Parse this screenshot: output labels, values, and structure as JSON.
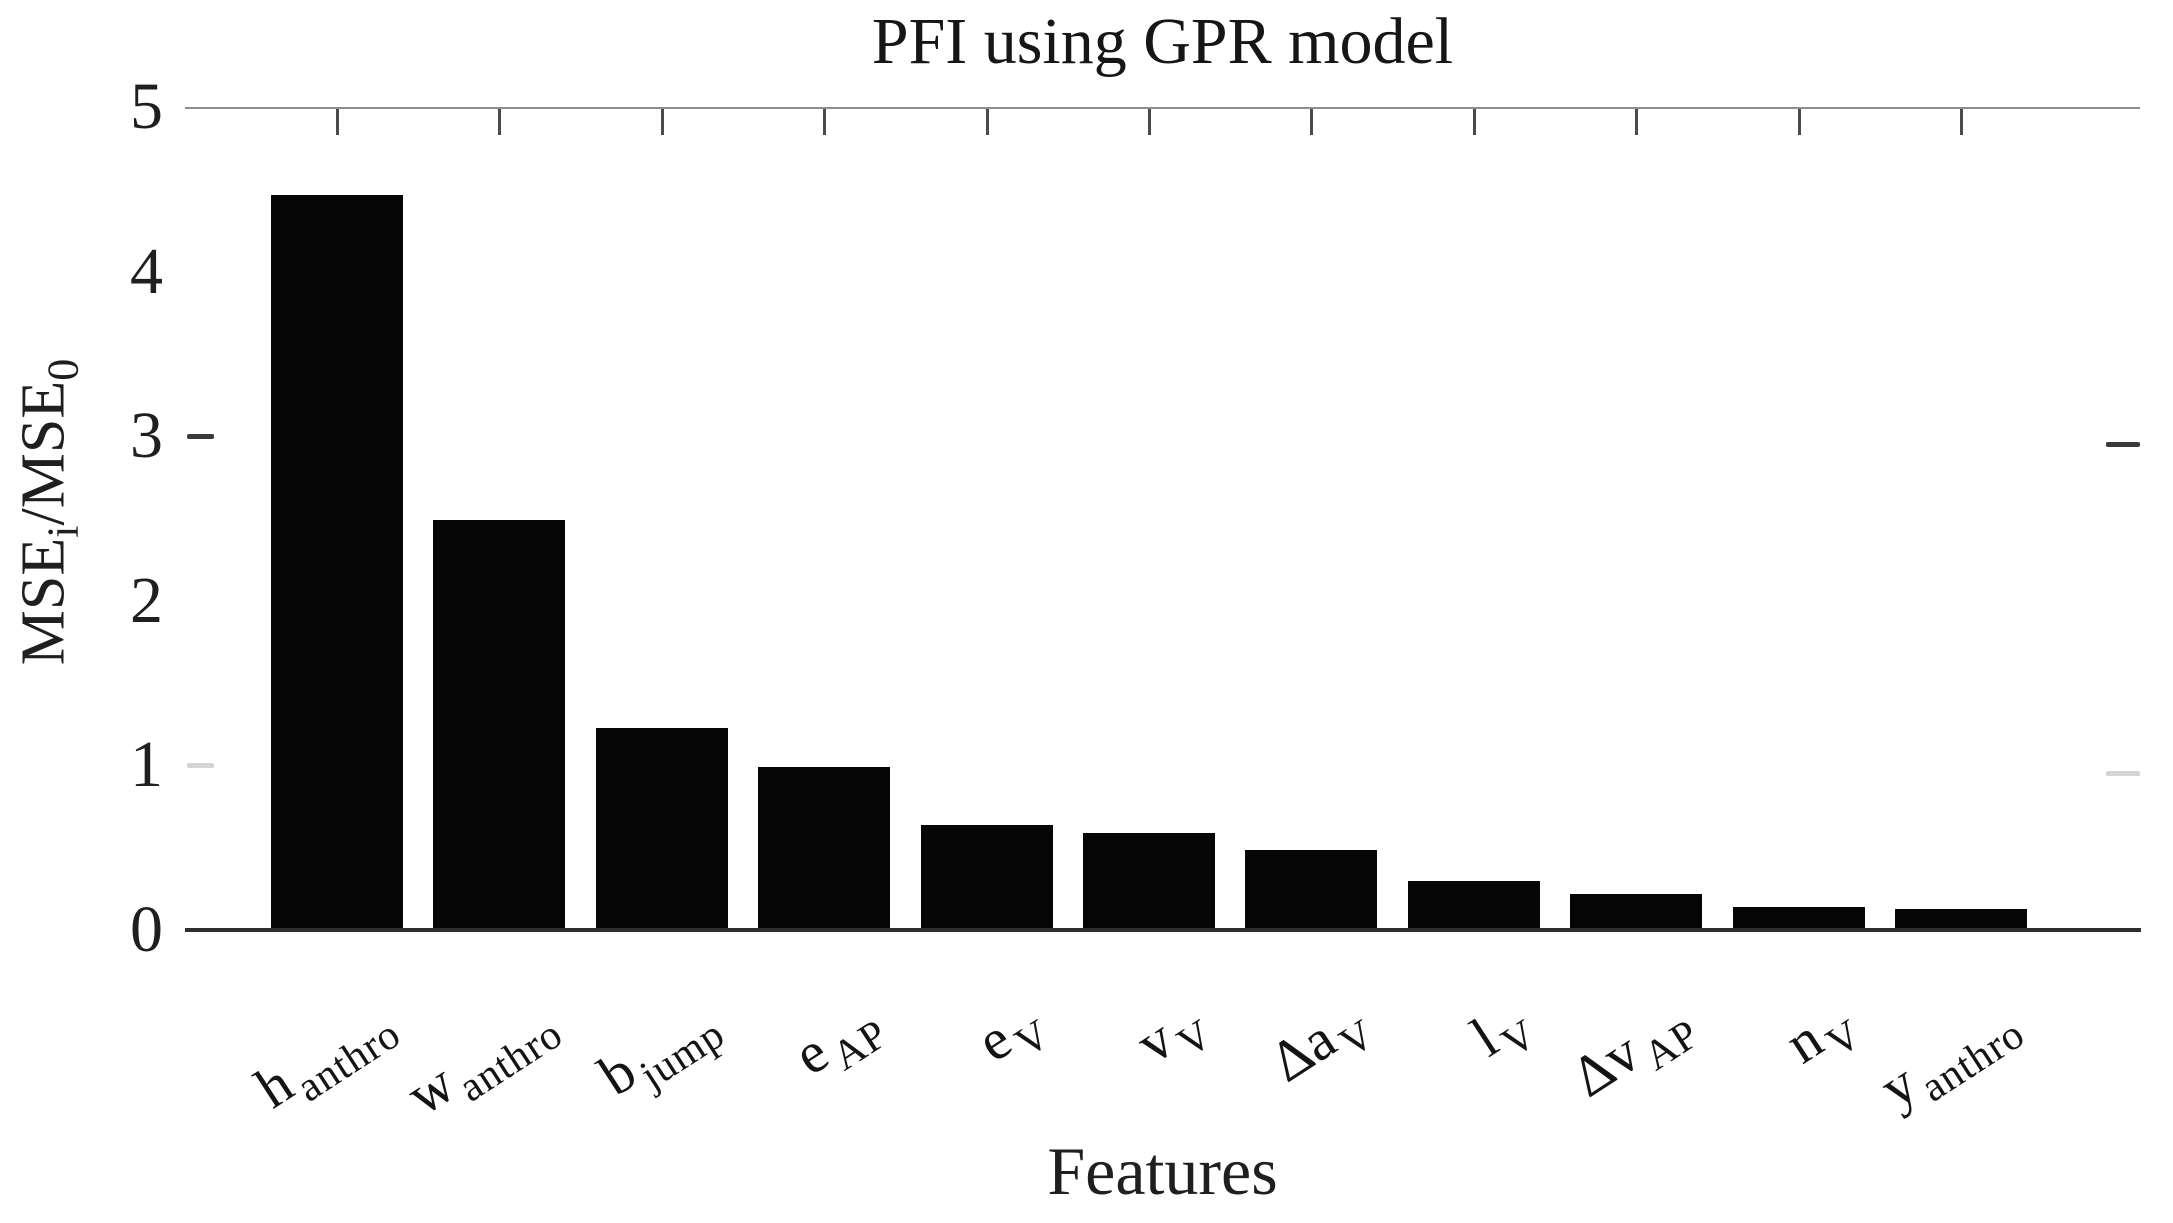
{
  "figure": {
    "title": "PFI using GPR model",
    "xlabel": "Features",
    "ylabel_parts": {
      "pre": "MSE",
      "sub1": "i",
      "mid": "/MSE",
      "sub2": "0"
    }
  },
  "chart_data": {
    "type": "bar",
    "title": "PFI using GPR model",
    "xlabel": "Features",
    "ylabel": "MSE_i/MSE_0",
    "categories": [
      "h_anthro",
      "w_anthro",
      "b_jump",
      "e_AP",
      "e_V",
      "v_V",
      "Δa_V",
      "l_V",
      "Δv_AP",
      "n_V",
      "y_anthro"
    ],
    "categories_rich": [
      {
        "base": "h",
        "sub": "anthro"
      },
      {
        "base": "w",
        "sub": "anthro"
      },
      {
        "base": "b",
        "sub": "jump"
      },
      {
        "base": "e",
        "sub": "AP"
      },
      {
        "base": "e",
        "sub": "V"
      },
      {
        "base": "v",
        "sub": "V"
      },
      {
        "base": "Δa",
        "sub": "V"
      },
      {
        "base": "l",
        "sub": "V"
      },
      {
        "base": "Δv",
        "sub": "AP"
      },
      {
        "base": "n",
        "sub": "V"
      },
      {
        "base": "y",
        "sub": "anthro"
      }
    ],
    "values": [
      4.48,
      2.5,
      1.24,
      1.0,
      0.65,
      0.6,
      0.5,
      0.31,
      0.23,
      0.15,
      0.14
    ],
    "ylim": [
      0,
      5
    ],
    "yticks": [
      0,
      1,
      2,
      3,
      4,
      5
    ],
    "visible_side_tick_values": [
      3,
      1
    ],
    "bar_color": "#060606",
    "grid": false,
    "legend": null
  }
}
